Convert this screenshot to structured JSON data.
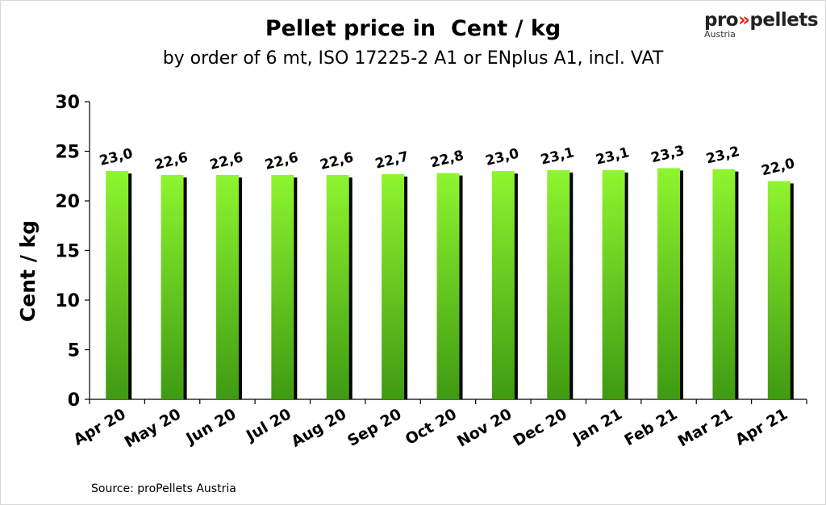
{
  "header": {
    "title": "Pellet price in  Cent / kg",
    "subtitle": "by order of 6 mt, ISO 17225-2 A1 or ENplus A1, incl. VAT"
  },
  "logo": {
    "brand_prefix": "pro",
    "brand_arrows": "»",
    "brand_suffix": "pellets",
    "region": "Austria"
  },
  "footer": {
    "source": "Source:  proPellets Austria"
  },
  "colors": {
    "bar_top": "#8ef52f",
    "bar_bottom": "#3f9a12",
    "shadow": "#000000"
  },
  "chart_data": {
    "type": "bar",
    "title": "Pellet price in  Cent / kg",
    "subtitle": "by order of 6 mt, ISO 17225-2 A1 or ENplus A1, incl. VAT",
    "xlabel": "",
    "ylabel": "Cent / kg",
    "ylim": [
      0,
      30
    ],
    "yticks": [
      "0",
      "5",
      "10",
      "15",
      "20",
      "25",
      "30"
    ],
    "categories": [
      "Apr 20",
      "May 20",
      "Jun 20",
      "Jul 20",
      "Aug 20",
      "Sep 20",
      "Oct 20",
      "Nov 20",
      "Dec 20",
      "Jan 21",
      "Feb 21",
      "Mar 21",
      "Apr 21"
    ],
    "values": [
      23.0,
      22.6,
      22.6,
      22.6,
      22.6,
      22.7,
      22.8,
      23.0,
      23.1,
      23.1,
      23.3,
      23.2,
      22.0
    ],
    "value_labels": [
      "23,0",
      "22,6",
      "22,6",
      "22,6",
      "22,6",
      "22,7",
      "22,8",
      "23,0",
      "23,1",
      "23,1",
      "23,3",
      "23,2",
      "22,0"
    ],
    "grid": false,
    "legend": "none"
  }
}
